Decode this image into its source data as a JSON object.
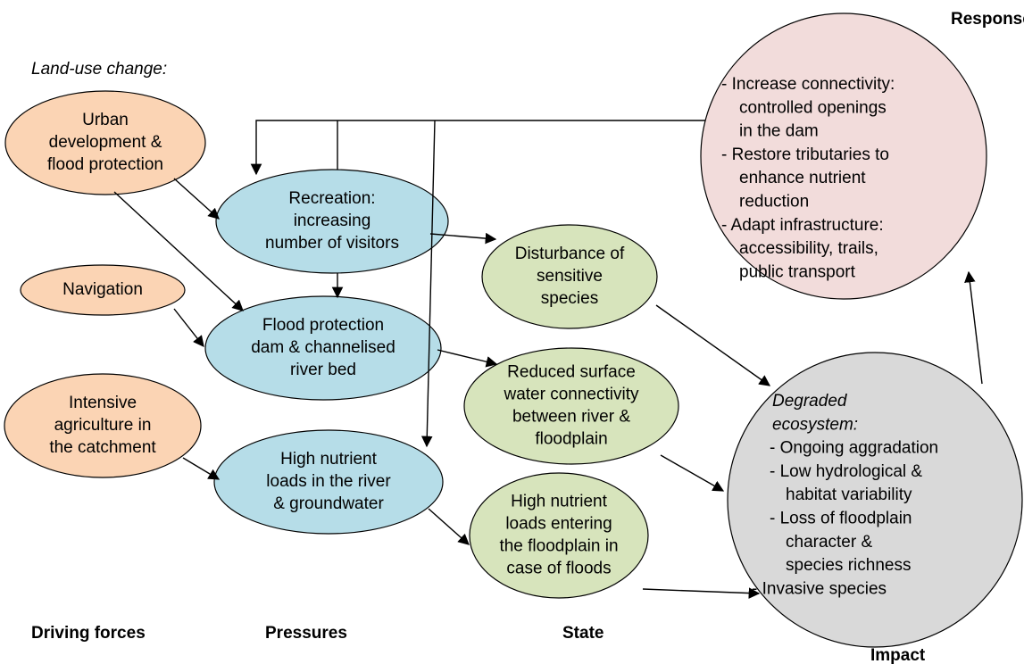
{
  "labels": {
    "land_use": "Land-use change:",
    "driving": "Driving forces",
    "pressures": "Pressures",
    "state": "State",
    "response": "Response",
    "impact": "Impact"
  },
  "nodes": [
    {
      "lines": [
        "Urban",
        "development &",
        "flood protection"
      ]
    },
    {
      "lines": [
        "Navigation"
      ]
    },
    {
      "lines": [
        "Intensive",
        "agriculture in",
        "the catchment"
      ]
    },
    {
      "lines": [
        "Recreation:",
        "increasing",
        "number of visitors"
      ]
    },
    {
      "lines": [
        "Flood protection",
        "dam & channelised",
        "river bed"
      ]
    },
    {
      "lines": [
        "High nutrient",
        "loads in the river",
        "& groundwater"
      ]
    },
    {
      "lines": [
        "Disturbance of",
        "sensitive",
        "species"
      ]
    },
    {
      "lines": [
        "Reduced surface",
        "water connectivity",
        "between river &",
        "floodplain"
      ]
    },
    {
      "lines": [
        "High nutrient",
        "loads entering",
        "the floodplain in",
        "case of floods"
      ]
    },
    {
      "lines": [
        "- Increase connectivity:",
        "controlled openings",
        "in the dam",
        "- Restore tributaries to",
        "enhance nutrient",
        "reduction",
        "- Adapt infrastructure:",
        "accessibility, trails,",
        "public transport"
      ]
    },
    {
      "lines": [
        "Degraded",
        "ecosystem:",
        "- Ongoing aggradation",
        "- Low hydrological &",
        "habitat variability",
        "- Loss of floodplain",
        "character &",
        "species richness",
        "- Invasive species"
      ]
    }
  ]
}
